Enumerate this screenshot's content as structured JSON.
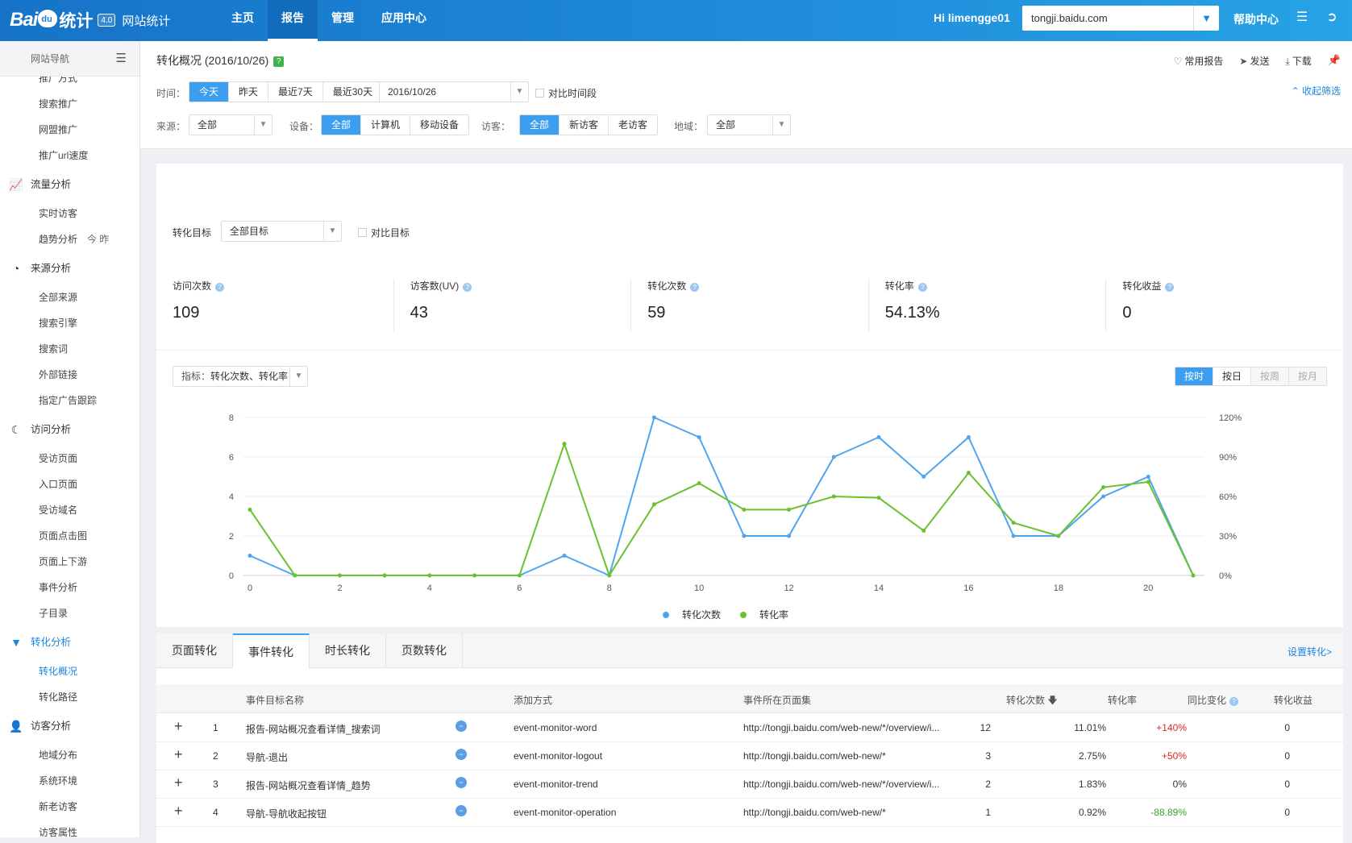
{
  "header": {
    "logo_text": "Bai",
    "logo_paw": "du",
    "logo_tj": "统计",
    "logo_badge": "4.0",
    "site_label": "网站统计",
    "nav": [
      {
        "label": "主页",
        "active": false
      },
      {
        "label": "报告",
        "active": true
      },
      {
        "label": "管理",
        "active": false
      },
      {
        "label": "应用中心",
        "active": false
      }
    ],
    "greeting": "Hi limengge01",
    "domain": "tongji.baidu.com",
    "help": "帮助中心"
  },
  "sidebar": {
    "title": "网站导航",
    "items": [
      {
        "type": "item",
        "label": "推广方式"
      },
      {
        "type": "item",
        "label": "搜索推广"
      },
      {
        "type": "item",
        "label": "网盟推广"
      },
      {
        "type": "item",
        "label": "推广url速度"
      },
      {
        "type": "group",
        "label": "流量分析",
        "icon": "chart-icon"
      },
      {
        "type": "item",
        "label": "实时访客"
      },
      {
        "type": "item",
        "label": "趋势分析",
        "extra": "今   昨"
      },
      {
        "type": "group",
        "label": "来源分析",
        "icon": "pie-icon"
      },
      {
        "type": "item",
        "label": "全部来源"
      },
      {
        "type": "item",
        "label": "搜索引擎"
      },
      {
        "type": "item",
        "label": "搜索词"
      },
      {
        "type": "item",
        "label": "外部链接"
      },
      {
        "type": "item",
        "label": "指定广告跟踪"
      },
      {
        "type": "group",
        "label": "访问分析",
        "icon": "moon-icon"
      },
      {
        "type": "item",
        "label": "受访页面"
      },
      {
        "type": "item",
        "label": "入口页面"
      },
      {
        "type": "item",
        "label": "受访域名"
      },
      {
        "type": "item",
        "label": "页面点击图"
      },
      {
        "type": "item",
        "label": "页面上下游"
      },
      {
        "type": "item",
        "label": "事件分析"
      },
      {
        "type": "item",
        "label": "子目录"
      },
      {
        "type": "group",
        "label": "转化分析",
        "icon": "funnel-icon",
        "active": true
      },
      {
        "type": "item",
        "label": "转化概况",
        "active": true
      },
      {
        "type": "item",
        "label": "转化路径"
      },
      {
        "type": "group",
        "label": "访客分析",
        "icon": "user-icon"
      },
      {
        "type": "item",
        "label": "地域分布"
      },
      {
        "type": "item",
        "label": "系统环境"
      },
      {
        "type": "item",
        "label": "新老访客"
      },
      {
        "type": "item",
        "label": "访客属性"
      }
    ]
  },
  "page": {
    "title": "转化概况 (2016/10/26)",
    "help_mark": "?",
    "actions": [
      "常用报告",
      "发送",
      "下载"
    ],
    "filters": {
      "time_label": "时间：",
      "time_options": [
        "今天",
        "昨天",
        "最近7天",
        "最近30天"
      ],
      "time_selected": 0,
      "date": "2016/10/26",
      "compare_period": "对比时间段",
      "collapse": "收起筛选",
      "source_label": "来源：",
      "source_value": "全部",
      "device_label": "设备：",
      "device_options": [
        "全部",
        "计算机",
        "移动设备"
      ],
      "visitor_label": "访客：",
      "visitor_options": [
        "全部",
        "新访客",
        "老访客"
      ],
      "region_label": "地域：",
      "region_value": "全部"
    }
  },
  "goal": {
    "label": "转化目标",
    "value": "全部目标",
    "compare": "对比目标"
  },
  "kpis": [
    {
      "label": "访问次数",
      "value": "109"
    },
    {
      "label": "访客数(UV)",
      "value": "43"
    },
    {
      "label": "转化次数",
      "value": "59"
    },
    {
      "label": "转化率",
      "value": "54.13%"
    },
    {
      "label": "转化收益",
      "value": "0"
    }
  ],
  "metric_select": {
    "label": "指标：",
    "value": "转化次数、转化率"
  },
  "granularity": [
    {
      "label": "按时",
      "state": "on"
    },
    {
      "label": "按日",
      "state": "normal"
    },
    {
      "label": "按周",
      "state": "dis"
    },
    {
      "label": "按月",
      "state": "dis"
    }
  ],
  "chart_data": {
    "type": "line",
    "x": [
      0,
      1,
      2,
      3,
      4,
      5,
      6,
      7,
      8,
      9,
      10,
      11,
      12,
      13,
      14,
      15,
      16,
      17,
      18,
      19,
      20,
      21
    ],
    "x_ticks": [
      0,
      2,
      4,
      6,
      8,
      10,
      12,
      14,
      16,
      18,
      20
    ],
    "y_left_ticks": [
      "0",
      "2",
      "4",
      "6",
      "8"
    ],
    "y_right_ticks": [
      "0%",
      "30%",
      "60%",
      "90%",
      "120%"
    ],
    "ylim_left": [
      0,
      8
    ],
    "ylim_right": [
      0,
      120
    ],
    "series": [
      {
        "name": "转化次数",
        "axis": "left",
        "color": "#4ea5ef",
        "values": [
          1,
          0,
          0,
          0,
          0,
          0,
          0,
          1,
          0,
          8,
          7,
          2,
          2,
          6,
          7,
          5,
          7,
          2,
          2,
          4,
          5,
          0
        ]
      },
      {
        "name": "转化率",
        "axis": "right",
        "color": "#6cc12f",
        "values": [
          50,
          0,
          0,
          0,
          0,
          0,
          0,
          100,
          0,
          54,
          70,
          50,
          50,
          60,
          59,
          34,
          78,
          40,
          30,
          67,
          71,
          0
        ]
      }
    ],
    "grid": true,
    "legend": "bottom"
  },
  "tabs": [
    "页面转化",
    "事件转化",
    "时长转化",
    "页数转化"
  ],
  "active_tab": 1,
  "set_conversion": "设置转化>",
  "table": {
    "headers": [
      "事件目标名称",
      "添加方式",
      "事件所在页面集",
      "转化次数",
      "转化率",
      "同比变化",
      "转化收益"
    ],
    "rows": [
      {
        "idx": "1",
        "name": "报告-网站概况查看详情_搜索词",
        "method": "event-monitor-word",
        "page": "http://tongji.baidu.com/web-new/*/overview/i...",
        "count": "12",
        "rate": "11.01%",
        "change": "+140%",
        "change_type": "pos",
        "revenue": "0"
      },
      {
        "idx": "2",
        "name": "导航-退出",
        "method": "event-monitor-logout",
        "page": "http://tongji.baidu.com/web-new/*",
        "count": "3",
        "rate": "2.75%",
        "change": "+50%",
        "change_type": "pos",
        "revenue": "0"
      },
      {
        "idx": "3",
        "name": "报告-网站概况查看详情_趋势",
        "method": "event-monitor-trend",
        "page": "http://tongji.baidu.com/web-new/*/overview/i...",
        "count": "2",
        "rate": "1.83%",
        "change": "0%",
        "change_type": "none",
        "revenue": "0"
      },
      {
        "idx": "4",
        "name": "导航-导航收起按钮",
        "method": "event-monitor-operation",
        "page": "http://tongji.baidu.com/web-new/*",
        "count": "1",
        "rate": "0.92%",
        "change": "-88.89%",
        "change_type": "neg",
        "revenue": "0"
      }
    ]
  }
}
